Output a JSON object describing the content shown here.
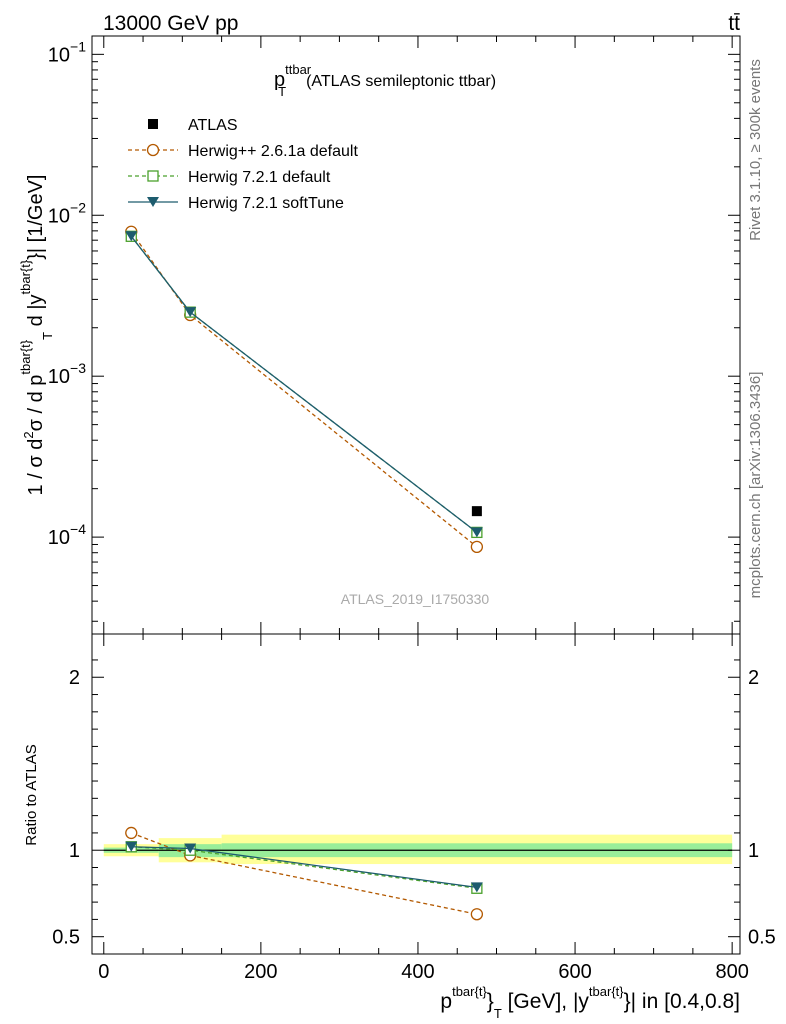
{
  "header": {
    "energy_label": "13000 GeV pp",
    "process_label": "tt̄"
  },
  "side_labels": {
    "rivet": "Rivet 3.1.10, ≥ 300k events",
    "mcplots": "mcplots.cern.ch [arXiv:1306.3436]"
  },
  "chart_data": [
    {
      "type": "line",
      "panel": "main",
      "title": {
        "p": "p",
        "sup": "ttbar",
        "sub": "T",
        "rest": "(ATLAS semileptonic ttbar)"
      },
      "ylabel": "1 / σ d²σ / d p^{tbar{t}}_T d |y^{tbar{t}}| [1/GeV]",
      "ylabel_parts": {
        "a": "1 / σ d",
        "b": "2",
        "c": "σ / d p",
        "d": "tbar{t}",
        "e": "T",
        "f": " d |y",
        "g": "tbar{t}",
        "h": "}| [1/GeV]"
      },
      "yscale": "log",
      "ylim": [
        2.5e-05,
        0.13
      ],
      "xlim": [
        -15,
        810
      ],
      "yticks": [
        {
          "value": 0.1,
          "base": "10",
          "exp": "−1"
        },
        {
          "value": 0.01,
          "base": "10",
          "exp": "−2"
        },
        {
          "value": 0.001,
          "base": "10",
          "exp": "−3"
        },
        {
          "value": 0.0001,
          "base": "10",
          "exp": "−4"
        }
      ],
      "watermark": "ATLAS_2019_I1750330",
      "legend_position": "top-left",
      "series": [
        {
          "name": "ATLAS",
          "style": "data",
          "color": "#000000",
          "marker": "square-filled",
          "x": [
            35,
            110,
            475
          ],
          "y": [
            0.0074,
            0.0025,
            0.000145
          ]
        },
        {
          "name": "Herwig++ 2.6.1a default",
          "style": "dashed",
          "color": "#b35900",
          "marker": "circle-open",
          "x": [
            35,
            110,
            475
          ],
          "y": [
            0.0079,
            0.0024,
            8.7e-05
          ]
        },
        {
          "name": "Herwig 7.2.1 default",
          "style": "dashed",
          "color": "#4aa02c",
          "marker": "square-open",
          "x": [
            35,
            110,
            475
          ],
          "y": [
            0.0074,
            0.0025,
            0.000107
          ]
        },
        {
          "name": "Herwig 7.2.1 softTune",
          "style": "solid",
          "color": "#1d5c6e",
          "marker": "triangle-down-filled",
          "x": [
            35,
            110,
            475
          ],
          "y": [
            0.0074,
            0.0025,
            0.000107
          ]
        }
      ]
    },
    {
      "type": "line",
      "panel": "ratio",
      "ylabel": "Ratio to ATLAS",
      "xlabel_parts": {
        "a": "p",
        "b": "tbar{t}",
        "c": "}",
        "d": "T",
        "e": " [GeV], |y",
        "f": "tbar{t}",
        "g": "}| in [0.4,0.8]"
      },
      "ylim": [
        0.4,
        2.25
      ],
      "xlim": [
        -15,
        810
      ],
      "yticks": [
        {
          "value": 0.5,
          "label": "0.5"
        },
        {
          "value": 1,
          "label": "1"
        },
        {
          "value": 2,
          "label": "2"
        }
      ],
      "xticks": [
        {
          "value": 0,
          "label": "0"
        },
        {
          "value": 200,
          "label": "200"
        },
        {
          "value": 400,
          "label": "400"
        },
        {
          "value": 600,
          "label": "600"
        },
        {
          "value": 800,
          "label": "800"
        }
      ],
      "uncertainty_bins": [
        {
          "x_low": 0,
          "x_high": 70,
          "inner": [
            0.985,
            1.015
          ],
          "outer": [
            0.965,
            1.035
          ]
        },
        {
          "x_low": 70,
          "x_high": 150,
          "inner": [
            0.96,
            1.035
          ],
          "outer": [
            0.93,
            1.07
          ]
        },
        {
          "x_low": 150,
          "x_high": 800,
          "inner": [
            0.96,
            1.04
          ],
          "outer": [
            0.92,
            1.09
          ]
        }
      ],
      "series": [
        {
          "name": "Herwig++ 2.6.1a default",
          "style": "dashed",
          "color": "#b35900",
          "marker": "circle-open",
          "x": [
            35,
            110,
            475
          ],
          "y": [
            1.1,
            0.97,
            0.63
          ]
        },
        {
          "name": "Herwig 7.2.1 default",
          "style": "dashed",
          "color": "#4aa02c",
          "marker": "square-open",
          "x": [
            35,
            110,
            475
          ],
          "y": [
            1.02,
            1.0,
            0.78
          ]
        },
        {
          "name": "Herwig 7.2.1 softTune",
          "style": "solid",
          "color": "#1d5c6e",
          "marker": "triangle-down-filled",
          "x": [
            35,
            110,
            475
          ],
          "y": [
            1.02,
            1.01,
            0.785
          ]
        }
      ]
    }
  ]
}
